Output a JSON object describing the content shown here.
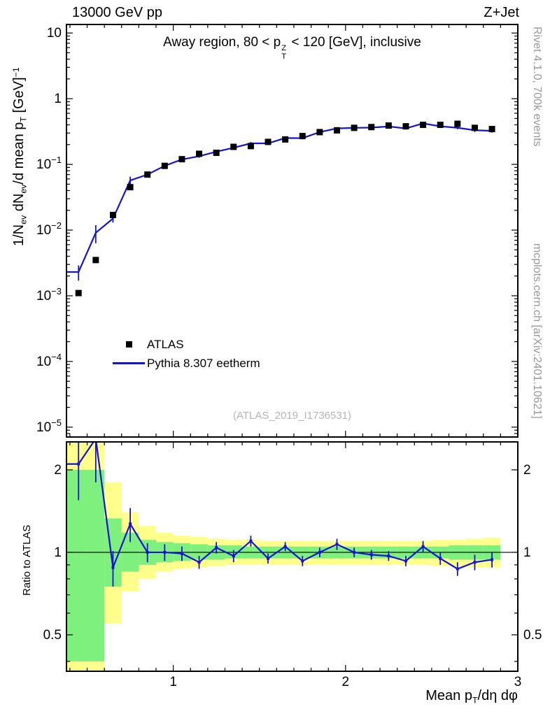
{
  "header": {
    "left": "13000 GeV pp",
    "right": "Z+Jet"
  },
  "labels": {
    "title": {
      "p1": "Away region, 80 < p",
      "sup": "Z",
      "sub": "T",
      "p2": " < 120 [GeV], inclusive"
    },
    "y_axis": {
      "p1": "1/N",
      "s1": "ev",
      "p2": " dN",
      "s2": "ev",
      "p3": "/d mean p",
      "s3": "T",
      "p4": " [GeV]",
      "sup": "−1"
    },
    "x_axis": {
      "p1": "Mean p",
      "s1": "T",
      "p2": "/dη dφ"
    },
    "ratio_axis": "Ratio to ATLAS",
    "watermark": "(ATLAS_2019_I1736531)"
  },
  "side_notes": {
    "top": "Rivet 4.1.0,  700k events",
    "bottom": "mcplots.cern.ch [arXiv:2401.10621]"
  },
  "legend": {
    "entries": [
      {
        "label": "ATLAS",
        "marker": "black-square"
      },
      {
        "label": "Pythia 8.307 eetherm",
        "marker": "blue-line"
      }
    ]
  },
  "colors": {
    "mc_line": "#1414d2",
    "data_marker": "#000000",
    "band_green": "#7ef07e",
    "band_yellow": "#ffff8c",
    "side_text": "#999999",
    "watermark": "#b5b5b5"
  },
  "chart_data": {
    "type": "line",
    "title": "Away region, 80 < pT^Z < 120 [GeV], inclusive",
    "xlabel": "Mean pT/dη dφ",
    "ylabel": "1/Nev dNev/d mean pT [GeV]^-1",
    "ratio_label": "Ratio to ATLAS",
    "grid": false,
    "legend_position": "left-middle",
    "x_range": [
      0.38,
      3.0
    ],
    "y_log_range": [
      -5.15,
      1.13
    ],
    "ratio_log_range": [
      -0.434,
      0.403
    ],
    "bin_half": 0.05,
    "x": [
      0.45,
      0.55,
      0.65,
      0.75,
      0.85,
      0.95,
      1.05,
      1.15,
      1.25,
      1.35,
      1.45,
      1.55,
      1.65,
      1.75,
      1.85,
      1.95,
      2.05,
      2.15,
      2.25,
      2.35,
      2.45,
      2.55,
      2.65,
      2.75,
      2.85
    ],
    "series": [
      {
        "name": "ATLAS",
        "type": "scatter",
        "marker": "square",
        "color": "#000000",
        "values": [
          0.0011,
          0.0035,
          0.017,
          0.045,
          0.07,
          0.095,
          0.12,
          0.145,
          0.15,
          0.185,
          0.19,
          0.22,
          0.24,
          0.27,
          0.31,
          0.33,
          0.36,
          0.37,
          0.39,
          0.38,
          0.4,
          0.4,
          0.415,
          0.36,
          0.345
        ]
      },
      {
        "name": "Pythia 8.307 eetherm",
        "type": "line",
        "color": "#1414d2",
        "values": [
          0.0023,
          0.0091,
          0.015,
          0.057,
          0.07,
          0.095,
          0.119,
          0.133,
          0.156,
          0.179,
          0.209,
          0.209,
          0.252,
          0.251,
          0.31,
          0.353,
          0.36,
          0.363,
          0.378,
          0.353,
          0.42,
          0.38,
          0.361,
          0.331,
          0.324
        ],
        "errors": [
          0.0006,
          0.0028,
          0.002,
          0.008,
          0.0056,
          0.0067,
          0.007,
          0.007,
          0.008,
          0.009,
          0.01,
          0.009,
          0.01,
          0.01,
          0.012,
          0.017,
          0.014,
          0.015,
          0.015,
          0.014,
          0.021,
          0.019,
          0.018,
          0.02,
          0.019
        ]
      }
    ],
    "ratio": {
      "name": "Pythia / ATLAS",
      "values": [
        2.1,
        2.6,
        0.88,
        1.27,
        1.0,
        1.0,
        0.99,
        0.92,
        1.04,
        0.97,
        1.1,
        0.95,
        1.05,
        0.93,
        1.0,
        1.07,
        1.0,
        0.98,
        0.97,
        0.93,
        1.05,
        0.95,
        0.87,
        0.92,
        0.94
      ],
      "errors": [
        0.55,
        0.8,
        0.13,
        0.18,
        0.08,
        0.07,
        0.06,
        0.05,
        0.05,
        0.05,
        0.05,
        0.04,
        0.04,
        0.04,
        0.04,
        0.05,
        0.04,
        0.04,
        0.04,
        0.04,
        0.05,
        0.05,
        0.05,
        0.06,
        0.06
      ],
      "bands": {
        "green": [
          [
            0.4,
            2.0
          ],
          [
            0.4,
            2.0
          ],
          [
            0.75,
            1.33
          ],
          [
            0.85,
            1.18
          ],
          [
            0.9,
            1.11
          ],
          [
            0.92,
            1.09
          ],
          [
            0.93,
            1.08
          ],
          [
            0.94,
            1.07
          ],
          [
            0.94,
            1.06
          ],
          [
            0.95,
            1.06
          ],
          [
            0.95,
            1.05
          ],
          [
            0.95,
            1.05
          ],
          [
            0.95,
            1.05
          ],
          [
            0.95,
            1.05
          ],
          [
            0.95,
            1.05
          ],
          [
            0.95,
            1.05
          ],
          [
            0.95,
            1.05
          ],
          [
            0.95,
            1.05
          ],
          [
            0.95,
            1.05
          ],
          [
            0.95,
            1.05
          ],
          [
            0.95,
            1.05
          ],
          [
            0.95,
            1.05
          ],
          [
            0.94,
            1.06
          ],
          [
            0.94,
            1.06
          ],
          [
            0.94,
            1.06
          ]
        ],
        "yellow": [
          [
            0.36,
            2.6
          ],
          [
            0.36,
            2.6
          ],
          [
            0.55,
            1.8
          ],
          [
            0.72,
            1.4
          ],
          [
            0.8,
            1.25
          ],
          [
            0.85,
            1.18
          ],
          [
            0.87,
            1.15
          ],
          [
            0.88,
            1.14
          ],
          [
            0.89,
            1.12
          ],
          [
            0.9,
            1.11
          ],
          [
            0.9,
            1.11
          ],
          [
            0.9,
            1.1
          ],
          [
            0.9,
            1.1
          ],
          [
            0.9,
            1.1
          ],
          [
            0.9,
            1.1
          ],
          [
            0.9,
            1.1
          ],
          [
            0.9,
            1.1
          ],
          [
            0.9,
            1.1
          ],
          [
            0.9,
            1.1
          ],
          [
            0.9,
            1.1
          ],
          [
            0.9,
            1.1
          ],
          [
            0.89,
            1.11
          ],
          [
            0.89,
            1.11
          ],
          [
            0.88,
            1.12
          ],
          [
            0.88,
            1.13
          ]
        ]
      }
    },
    "ticks": {
      "y": [
        {
          "v": 10,
          "base": "10",
          "exp": ""
        },
        {
          "v": 1,
          "base": "1",
          "exp": ""
        },
        {
          "v": 0.1,
          "base": "10",
          "exp": "−1"
        },
        {
          "v": 0.01,
          "base": "10",
          "exp": "−2"
        },
        {
          "v": 0.001,
          "base": "10",
          "exp": "−3"
        },
        {
          "v": 0.0001,
          "base": "10",
          "exp": "−4"
        },
        {
          "v": 1e-05,
          "base": "10",
          "exp": "−5"
        }
      ],
      "x": [
        {
          "v": 1,
          "label": "1"
        },
        {
          "v": 2,
          "label": "2"
        },
        {
          "v": 3,
          "label": "3"
        }
      ],
      "ratio": [
        {
          "v": 2,
          "label": "2"
        },
        {
          "v": 1,
          "label": "1"
        },
        {
          "v": 0.5,
          "label": "0.5"
        }
      ],
      "ratio_minor": [
        0.4,
        0.6,
        0.7,
        0.8,
        0.9
      ]
    }
  }
}
